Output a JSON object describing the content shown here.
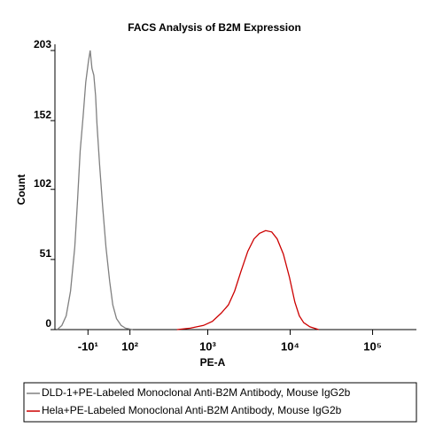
{
  "chart_data": {
    "type": "line",
    "title": "FACS Analysis of B2M Expression",
    "x_label": "PE-A",
    "y_label": "Count",
    "xscale": "biexponential",
    "xlim": [
      -100,
      340000
    ],
    "ylim": [
      0,
      203
    ],
    "xticks": [
      {
        "value": -10,
        "label": "-10¹"
      },
      {
        "value": 100,
        "label": "10²"
      },
      {
        "value": 1000,
        "label": "10³"
      },
      {
        "value": 10000,
        "label": "10⁴"
      },
      {
        "value": 100000,
        "label": "10⁵"
      }
    ],
    "yticks": [
      0,
      51,
      102,
      152,
      203
    ],
    "series": [
      {
        "name": "DLD-1+PE-Labeled Monoclonal Anti-B2M Antibody, Mouse IgG2b",
        "color": "#808080",
        "x": [
          -92,
          -77,
          -64,
          -52,
          -41,
          -34,
          -28,
          -21,
          -15,
          -9,
          -5,
          -1,
          3,
          7,
          10,
          16,
          23,
          31,
          40,
          48,
          58,
          71,
          85,
          110
        ],
        "values": [
          0,
          3,
          10,
          28,
          60,
          95,
          130,
          155,
          180,
          195,
          203,
          190,
          185,
          170,
          150,
          120,
          90,
          60,
          35,
          18,
          8,
          3,
          1,
          0
        ]
      },
      {
        "name": "Hela+PE-Labeled Monoclonal Anti-B2M Antibody, Mouse IgG2b",
        "color": "#cc0000",
        "x": [
          420,
          612,
          888,
          1139,
          1459,
          1783,
          2119,
          2519,
          3068,
          3648,
          4240,
          5040,
          5984,
          6952,
          8264,
          9816,
          11408,
          12912,
          14616,
          17376,
          22216
        ],
        "values": [
          0,
          1,
          3,
          6,
          12,
          18,
          28,
          42,
          57,
          66,
          70,
          72,
          71,
          66,
          55,
          38,
          20,
          10,
          5,
          2,
          0
        ]
      }
    ]
  }
}
